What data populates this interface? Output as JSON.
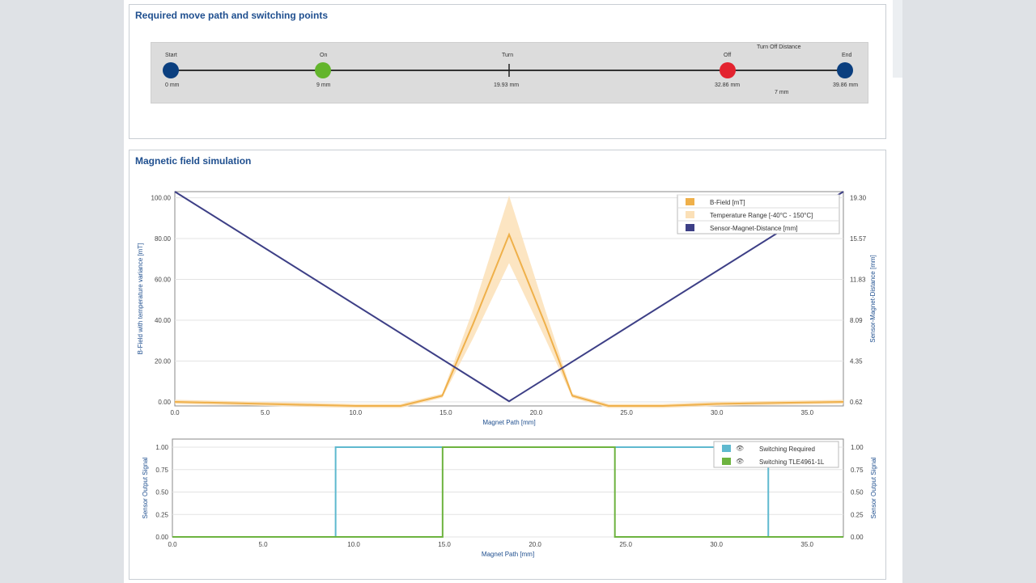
{
  "colors": {
    "title": "#1f4f8f",
    "start_end": "#0b3f7f",
    "on": "#63b52c",
    "off": "#e3232f",
    "bfield": "#efb04a",
    "temp_band": "#fbe0b7",
    "distance": "#3d3f86",
    "switch_required": "#5fb9cf",
    "switch_sensor": "#6db33f"
  },
  "move_path": {
    "title": "Required move path and switching points",
    "points": [
      {
        "label": "Start",
        "value": "0 mm"
      },
      {
        "label": "On",
        "value": "9 mm"
      },
      {
        "label": "Turn",
        "value": "19.93 mm"
      },
      {
        "label": "Off",
        "value": "32.86 mm"
      },
      {
        "label": "End",
        "value": "39.86 mm"
      }
    ],
    "turn_off_label": "Turn Off Distance",
    "turn_off_value": "7 mm"
  },
  "simulation": {
    "title": "Magnetic field simulation"
  },
  "chart_data": [
    {
      "type": "line",
      "xlabel": "Magnet Path [mm]",
      "ylabel": "B-Field with temperature variance [mT]",
      "y2label": "Sensor-Magnet-Distance [mm]",
      "xlim": [
        0,
        37
      ],
      "ylim": [
        -2,
        103
      ],
      "y2lim": [
        0.2,
        19.6
      ],
      "x_ticks": [
        "0.0",
        "5.0",
        "10.0",
        "15.0",
        "20.0",
        "25.0",
        "30.0",
        "35.0"
      ],
      "y_ticks": [
        "100.00",
        "80.00",
        "60.00",
        "40.00",
        "20.00",
        "0.00"
      ],
      "y2_ticks": [
        "19.30",
        "15.57",
        "11.83",
        "8.09",
        "4.35",
        "0.62"
      ],
      "legend": [
        "B-Field [mT]",
        "Temperature Range [-40°C - 150°C]",
        "Sensor-Magnet-Distance [mm]"
      ],
      "legend_position": "top-right",
      "grid": true,
      "series": [
        {
          "name": "B-Field [mT]",
          "x": [
            0,
            5,
            10,
            12.5,
            14.8,
            16.5,
            18.5,
            20.5,
            22,
            24,
            27,
            30,
            37
          ],
          "values": [
            0,
            -1,
            -2,
            -2,
            3,
            38,
            82,
            38,
            3,
            -2,
            -2,
            -1,
            0
          ]
        },
        {
          "name": "Temperature Range [-40°C - 150°C]",
          "x": [
            0,
            5,
            10,
            12.5,
            14.8,
            16.5,
            18.5,
            20.5,
            22,
            24,
            27,
            30,
            37
          ],
          "upper": [
            1,
            0,
            -1,
            -1,
            4,
            45,
            101,
            45,
            4,
            -1,
            -1,
            0,
            1
          ],
          "lower": [
            -1,
            -2,
            -3,
            -3,
            2,
            31,
            68,
            31,
            2,
            -3,
            -3,
            -2,
            -1
          ]
        },
        {
          "name": "Sensor-Magnet-Distance [mm]",
          "x": [
            0,
            18.5,
            37
          ],
          "values": [
            19.6,
            0.62,
            19.6
          ]
        }
      ]
    },
    {
      "type": "line",
      "xlabel": "Magnet Path [mm]",
      "ylabel": "Sensor Output Signal",
      "y2label": "Sensor Output Signal",
      "xlim": [
        0,
        37
      ],
      "ylim": [
        0,
        1
      ],
      "x_ticks": [
        "0.0",
        "5.0",
        "10.0",
        "15.0",
        "20.0",
        "25.0",
        "30.0",
        "35.0"
      ],
      "y_ticks": [
        "1.00",
        "0.75",
        "0.50",
        "0.25",
        "0.00"
      ],
      "legend": [
        "Switching Required",
        "Switching TLE4961-1L"
      ],
      "legend_position": "top-right",
      "grid": true,
      "series": [
        {
          "name": "Switching Required",
          "x": [
            0,
            9,
            9,
            32.86,
            32.86,
            37
          ],
          "values": [
            0,
            0,
            1,
            1,
            0,
            0
          ]
        },
        {
          "name": "Switching TLE4961-1L",
          "x": [
            0,
            14.9,
            14.9,
            24.4,
            24.4,
            37
          ],
          "values": [
            0,
            0,
            1,
            1,
            0,
            0
          ]
        }
      ]
    }
  ]
}
